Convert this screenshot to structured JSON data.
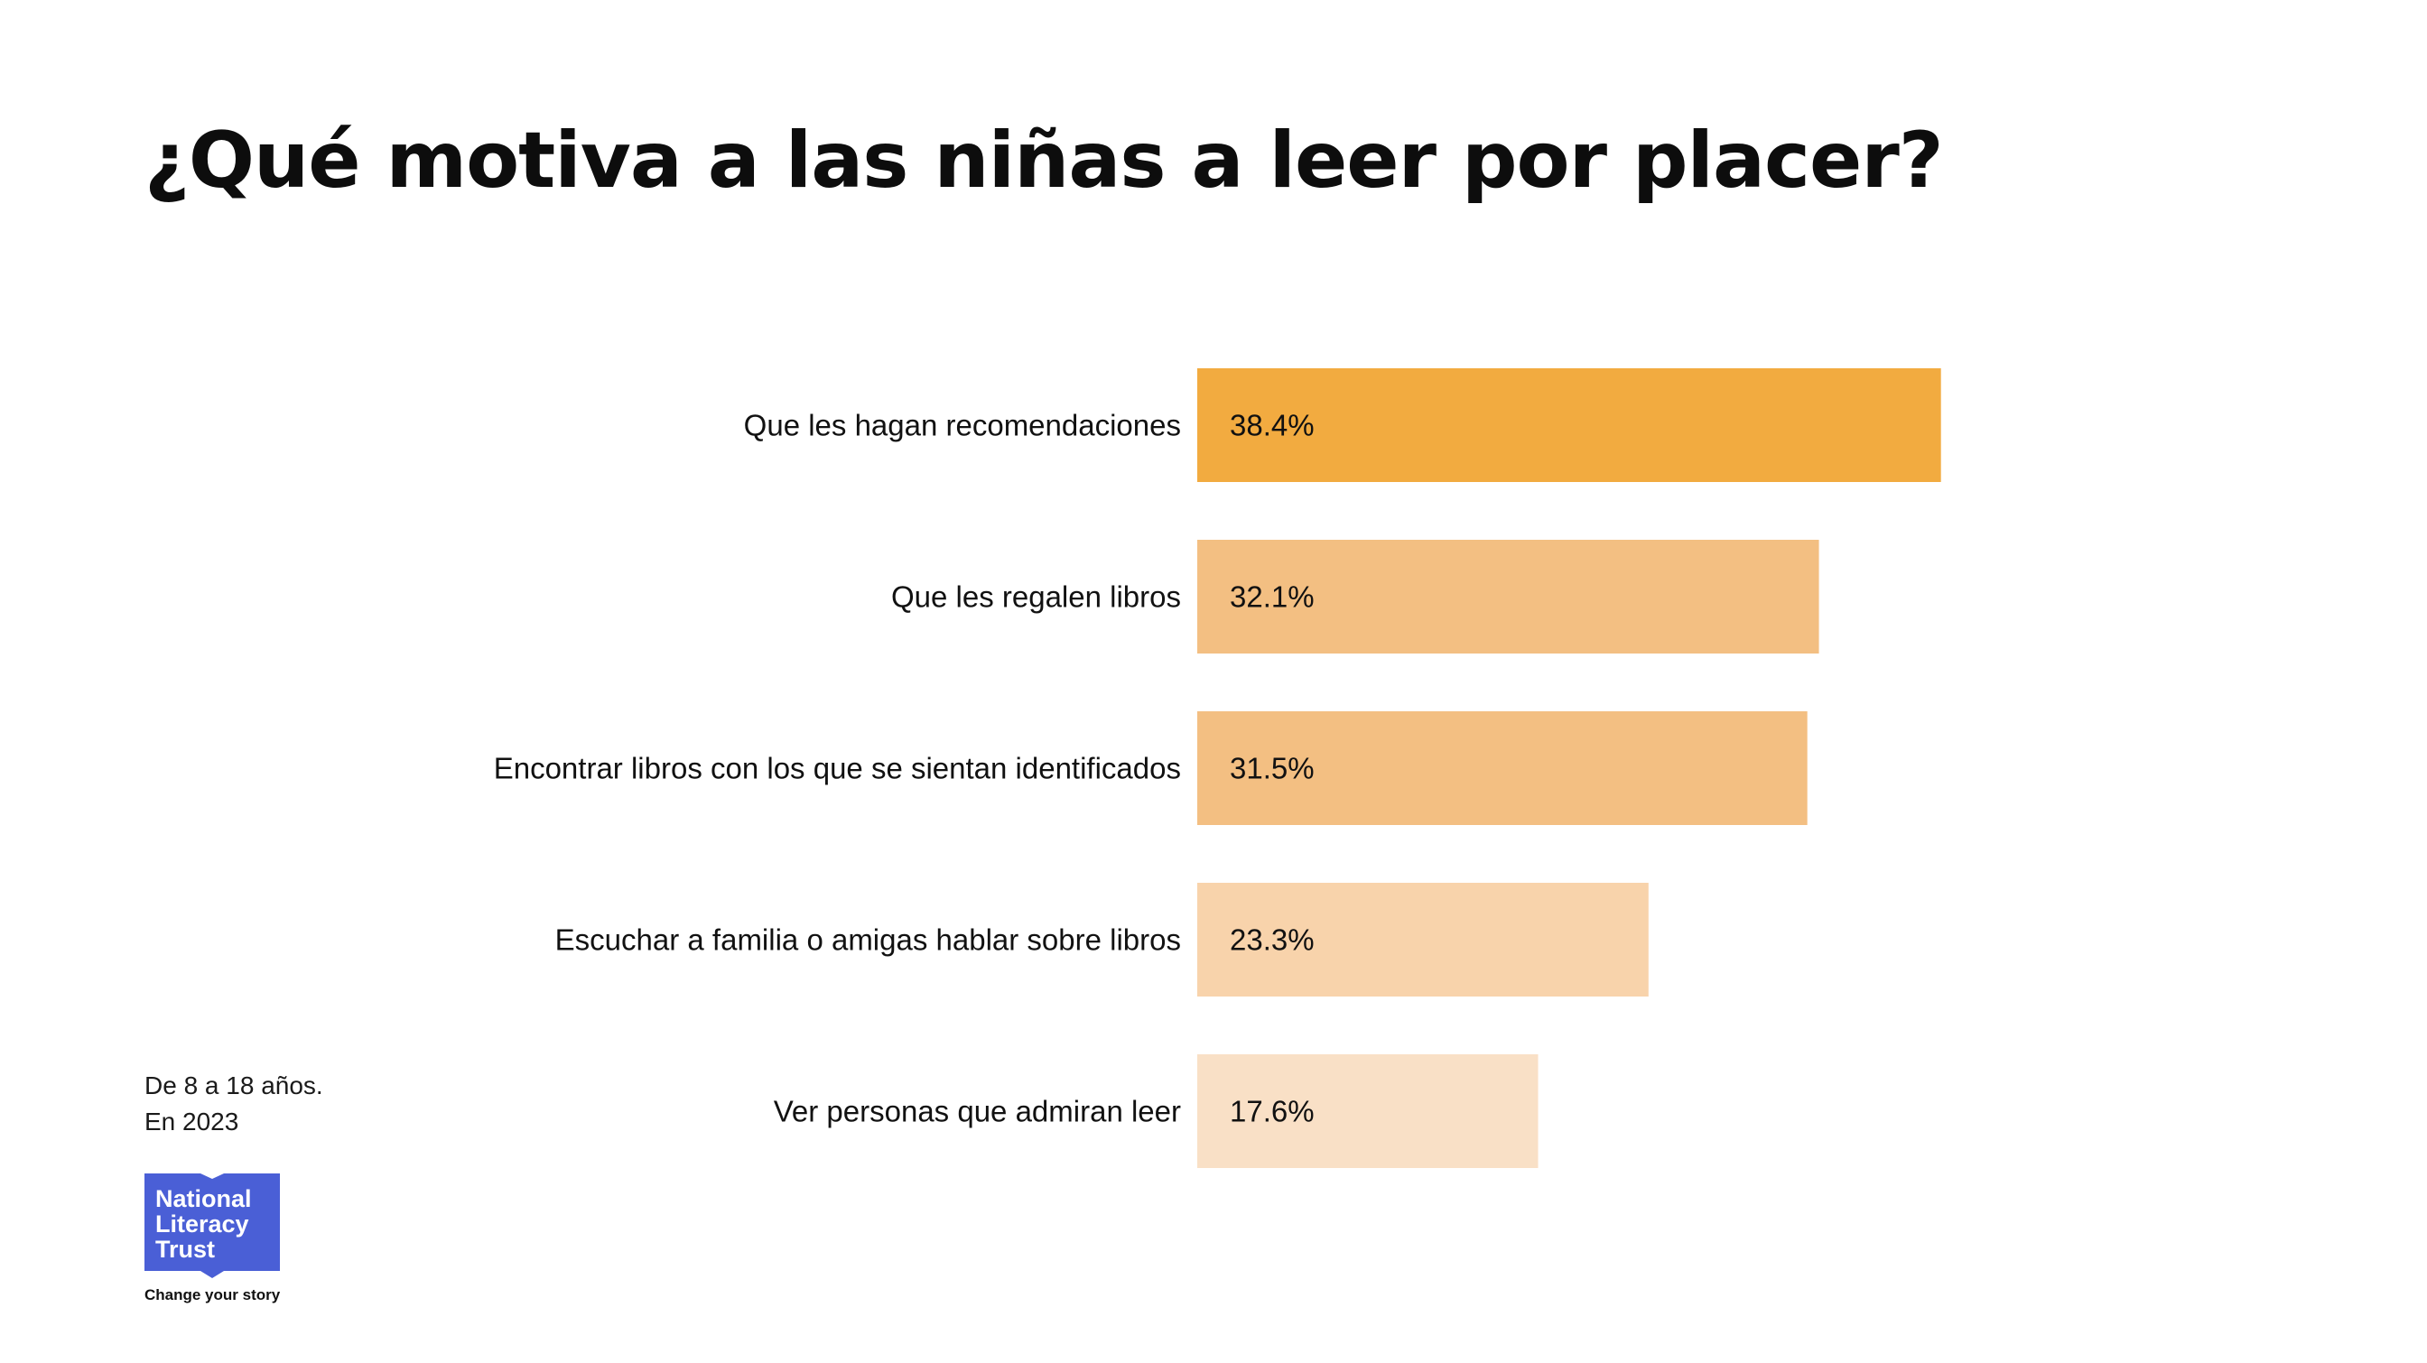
{
  "title": "¿Qué motiva a las niñas a leer por placer?",
  "notes": {
    "line1": "De 8 a 18 años.",
    "line2": "En 2023"
  },
  "logo": {
    "text": "National\nLiteracy\nTrust",
    "tagline": "Change your story",
    "color": "#4a5fd6"
  },
  "chart_data": {
    "type": "bar",
    "orientation": "horizontal",
    "title": "¿Qué motiva a las niñas a leer por placer?",
    "categories": [
      "Que les hagan recomendaciones",
      "Que les regalen libros",
      "Encontrar libros con los que se sientan identificados",
      "Escuchar a familia o amigas hablar sobre libros",
      "Ver personas que admiran leer"
    ],
    "values": [
      38.4,
      32.1,
      31.5,
      23.3,
      17.6
    ],
    "value_labels": [
      "38.4%",
      "32.1%",
      "31.5%",
      "23.3%",
      "17.6%"
    ],
    "unit": "%",
    "colors": [
      "#f2ab40",
      "#f3bf82",
      "#f3bf82",
      "#f8d3ab",
      "#f9e0c6"
    ],
    "grid": false,
    "legend": "none"
  }
}
